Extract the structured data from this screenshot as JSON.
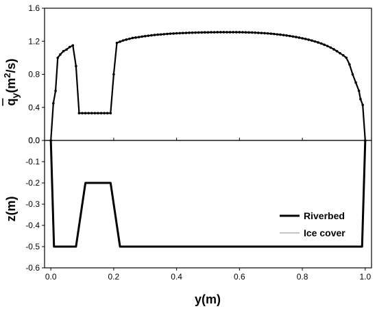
{
  "chart_data": [
    {
      "type": "line",
      "panel": "top",
      "ylabel": "q̄y(m²/s)",
      "ylabel_parts": {
        "q": "q",
        "y": "y",
        "open": "(m",
        "exp": "2",
        "close": "/s)"
      },
      "xlim": [
        -0.02,
        1.02
      ],
      "ylim": [
        0.0,
        1.6
      ],
      "yticks": [
        0.0,
        0.4,
        0.8,
        1.2,
        1.6
      ],
      "yticklabels": [
        "0.0",
        "0.4",
        "0.8",
        "1.2",
        "1.6"
      ],
      "series": [
        {
          "markers": true,
          "x": [
            0.0,
            0.008,
            0.015,
            0.022,
            0.03,
            0.04,
            0.05,
            0.06,
            0.07,
            0.08,
            0.09,
            0.1,
            0.11,
            0.12,
            0.13,
            0.14,
            0.15,
            0.16,
            0.17,
            0.18,
            0.19,
            0.2,
            0.21,
            0.22,
            0.23,
            0.24,
            0.25,
            0.26,
            0.27,
            0.28,
            0.29,
            0.3,
            0.31,
            0.32,
            0.33,
            0.34,
            0.35,
            0.36,
            0.37,
            0.38,
            0.39,
            0.4,
            0.41,
            0.42,
            0.43,
            0.44,
            0.45,
            0.46,
            0.47,
            0.48,
            0.49,
            0.5,
            0.51,
            0.52,
            0.53,
            0.54,
            0.55,
            0.56,
            0.57,
            0.58,
            0.59,
            0.6,
            0.61,
            0.62,
            0.63,
            0.64,
            0.65,
            0.66,
            0.67,
            0.68,
            0.69,
            0.7,
            0.71,
            0.72,
            0.73,
            0.74,
            0.75,
            0.76,
            0.77,
            0.78,
            0.79,
            0.8,
            0.81,
            0.82,
            0.83,
            0.84,
            0.85,
            0.86,
            0.87,
            0.88,
            0.89,
            0.9,
            0.91,
            0.92,
            0.93,
            0.94,
            0.95,
            0.96,
            0.97,
            0.98,
            0.985,
            0.992,
            1.0
          ],
          "y": [
            0.0,
            0.45,
            0.6,
            1.0,
            1.04,
            1.08,
            1.1,
            1.13,
            1.15,
            0.9,
            0.33,
            0.33,
            0.33,
            0.33,
            0.33,
            0.33,
            0.33,
            0.33,
            0.33,
            0.33,
            0.33,
            0.8,
            1.18,
            1.195,
            1.21,
            1.22,
            1.23,
            1.24,
            1.245,
            1.25,
            1.257,
            1.262,
            1.267,
            1.272,
            1.276,
            1.28,
            1.283,
            1.286,
            1.289,
            1.292,
            1.294,
            1.296,
            1.298,
            1.3,
            1.301,
            1.303,
            1.304,
            1.305,
            1.306,
            1.307,
            1.308,
            1.308,
            1.309,
            1.309,
            1.31,
            1.31,
            1.31,
            1.31,
            1.31,
            1.31,
            1.31,
            1.31,
            1.309,
            1.308,
            1.307,
            1.306,
            1.304,
            1.302,
            1.3,
            1.298,
            1.295,
            1.292,
            1.288,
            1.284,
            1.28,
            1.275,
            1.27,
            1.264,
            1.258,
            1.251,
            1.244,
            1.236,
            1.228,
            1.219,
            1.209,
            1.198,
            1.186,
            1.173,
            1.158,
            1.142,
            1.124,
            1.103,
            1.08,
            1.055,
            1.03,
            1.0,
            0.92,
            0.8,
            0.7,
            0.6,
            0.5,
            0.43,
            0.0
          ]
        }
      ]
    },
    {
      "type": "line",
      "panel": "bottom",
      "xlabel": "y(m)",
      "ylabel": "z(m)",
      "xlim": [
        -0.02,
        1.02
      ],
      "ylim": [
        -0.6,
        0.0
      ],
      "xticks": [
        0.0,
        0.2,
        0.4,
        0.6,
        0.8,
        1.0
      ],
      "xticklabels": [
        "0.0",
        "0.2",
        "0.4",
        "0.6",
        "0.8",
        "1.0"
      ],
      "yticks": [
        -0.6,
        -0.5,
        -0.4,
        -0.3,
        -0.2,
        -0.1,
        0.0
      ],
      "yticklabels": [
        "-0.6",
        "-0.5",
        "-0.4",
        "-0.3",
        "-0.2",
        "-0.1",
        "0.0"
      ],
      "legend_position": "bottom-right",
      "series": [
        {
          "name": "Riverbed",
          "color": "#000000",
          "x": [
            0.0,
            0.01,
            0.08,
            0.11,
            0.19,
            0.22,
            0.99,
            1.0
          ],
          "y": [
            0.0,
            -0.5,
            -0.5,
            -0.2,
            -0.2,
            -0.5,
            -0.5,
            0.0
          ]
        },
        {
          "name": "Ice cover",
          "color": "#8a8a8a",
          "x": [
            -0.02,
            1.02
          ],
          "y": [
            0.0,
            0.0
          ]
        }
      ]
    }
  ]
}
